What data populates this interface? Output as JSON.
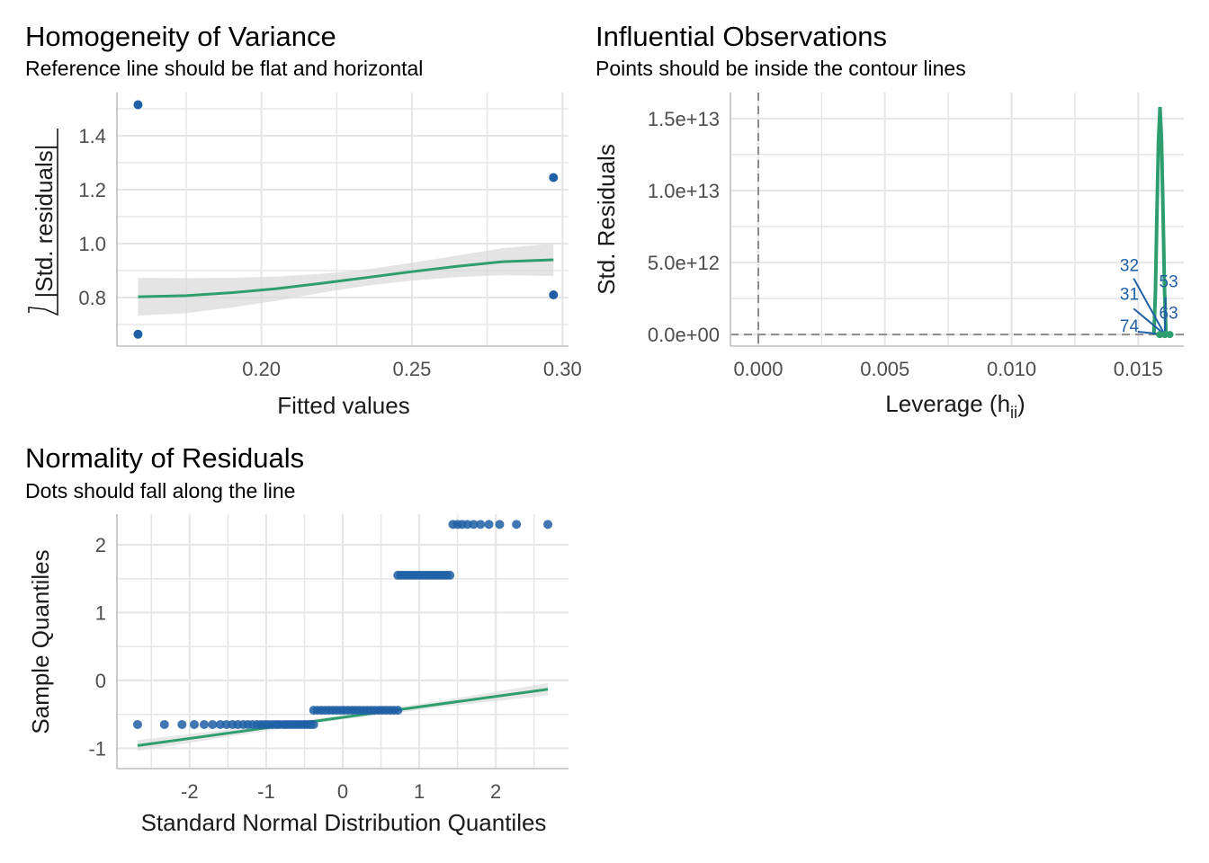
{
  "colors": {
    "points": "#1f5fa6",
    "line": "#2e9e6e",
    "band": "#d9d9d9",
    "grid": "#e5e5e5",
    "ref": "#8c8c8c"
  },
  "chart_data": [
    {
      "id": "variance",
      "type": "scatter",
      "title": "Homogeneity of Variance",
      "subtitle": "Reference line should be flat and horizontal",
      "xlabel": "Fitted values",
      "ylabel_radicand": "|Std. residuals|",
      "xlim": [
        0.152,
        0.302
      ],
      "ylim": [
        0.62,
        1.56
      ],
      "xticks": [
        0.2,
        0.25,
        0.3
      ],
      "xtick_labels": [
        "0.20",
        "0.25",
        "0.30"
      ],
      "yticks": [
        0.8,
        1.0,
        1.2,
        1.4
      ],
      "ytick_labels": [
        "0.8",
        "1.0",
        "1.2",
        "1.4"
      ],
      "points": [
        {
          "x": 0.159,
          "y": 1.515
        },
        {
          "x": 0.159,
          "y": 0.664
        },
        {
          "x": 0.297,
          "y": 1.245
        },
        {
          "x": 0.297,
          "y": 0.81
        }
      ],
      "smooth": [
        {
          "x": 0.159,
          "y": 0.803
        },
        {
          "x": 0.175,
          "y": 0.807
        },
        {
          "x": 0.19,
          "y": 0.818
        },
        {
          "x": 0.205,
          "y": 0.833
        },
        {
          "x": 0.22,
          "y": 0.853
        },
        {
          "x": 0.235,
          "y": 0.874
        },
        {
          "x": 0.25,
          "y": 0.896
        },
        {
          "x": 0.265,
          "y": 0.916
        },
        {
          "x": 0.28,
          "y": 0.933
        },
        {
          "x": 0.297,
          "y": 0.94
        }
      ],
      "band_halfwidth": [
        0.07,
        0.065,
        0.055,
        0.045,
        0.035,
        0.03,
        0.033,
        0.04,
        0.05,
        0.06
      ]
    },
    {
      "id": "influence",
      "type": "line",
      "title": "Influential Observations",
      "subtitle": "Points should be inside the contour lines",
      "xlabel": "Leverage (h",
      "xlabel_sub": "ii",
      "xlabel_close": ")",
      "ylabel": "Std. Residuals",
      "xlim": [
        -0.0011,
        0.0168
      ],
      "ylim": [
        -800000000000.0,
        16800000000000.0
      ],
      "xticks": [
        0,
        0.005,
        0.01,
        0.015
      ],
      "xtick_labels": [
        "0.000",
        "0.005",
        "0.010",
        "0.015"
      ],
      "yticks": [
        0,
        5000000000000.0,
        10000000000000.0,
        15000000000000.0
      ],
      "ytick_labels": [
        "0.0e+00",
        "5.0e+12",
        "1.0e+13",
        "1.5e+13"
      ],
      "ref_x": 0,
      "ref_y": 0,
      "contour": [
        {
          "x": 0.01562,
          "y": 0
        },
        {
          "x": 0.01568,
          "y": 3000000000000.0
        },
        {
          "x": 0.01574,
          "y": 8500000000000.0
        },
        {
          "x": 0.0158,
          "y": 13500000000000.0
        },
        {
          "x": 0.01586,
          "y": 15800000000000.0
        },
        {
          "x": 0.01592,
          "y": 13500000000000.0
        },
        {
          "x": 0.01598,
          "y": 8500000000000.0
        },
        {
          "x": 0.01604,
          "y": 3000000000000.0
        },
        {
          "x": 0.0161,
          "y": 0
        }
      ],
      "labels": [
        {
          "text": "32",
          "x": 0.01465,
          "y": 4400000000000.0,
          "color": "blue"
        },
        {
          "text": "31",
          "x": 0.01465,
          "y": 2400000000000.0,
          "color": "blue"
        },
        {
          "text": "74",
          "x": 0.01465,
          "y": 200000000000.0,
          "color": "blue"
        },
        {
          "text": "53",
          "x": 0.0162,
          "y": 3300000000000.0,
          "color": "blue"
        },
        {
          "text": "63",
          "x": 0.0162,
          "y": 1100000000000.0,
          "color": "blue"
        }
      ],
      "label_segments": [
        {
          "x1": 0.01482,
          "y1": 3900000000000.0,
          "x2": 0.01605,
          "y2": 0
        },
        {
          "x1": 0.01482,
          "y1": 1800000000000.0,
          "x2": 0.01605,
          "y2": 0
        },
        {
          "x1": 0.01498,
          "y1": 200000000000.0,
          "x2": 0.01605,
          "y2": 0
        },
        {
          "x1": 0.01608,
          "y1": 2600000000000.0,
          "x2": 0.01605,
          "y2": 0
        }
      ],
      "points": [
        {
          "x": 0.01605,
          "y": 0
        },
        {
          "x": 0.01585,
          "y": 0
        },
        {
          "x": 0.01625,
          "y": 0
        }
      ]
    },
    {
      "id": "qq",
      "type": "scatter",
      "title": "Normality of Residuals",
      "subtitle": "Dots should fall along the line",
      "xlabel": "Standard Normal Distribution Quantiles",
      "ylabel": "Sample Quantiles",
      "xlim": [
        -2.95,
        2.95
      ],
      "ylim": [
        -1.3,
        2.45
      ],
      "xticks": [
        -2,
        -1,
        0,
        1,
        2
      ],
      "xtick_labels": [
        "-2",
        "-1",
        "0",
        "1",
        "2"
      ],
      "yticks": [
        -1,
        0,
        1,
        2
      ],
      "ytick_labels": [
        "-1",
        "0",
        "1",
        "2"
      ],
      "groups": [
        {
          "y": -0.65,
          "x": [
            -2.68,
            -2.33,
            -2.1,
            -1.94,
            -1.81,
            -1.7,
            -1.6,
            -1.52,
            -1.44,
            -1.37,
            -1.3,
            -1.24,
            -1.18,
            -1.12,
            -1.07,
            -1.02,
            -0.97,
            -0.92,
            -0.87,
            -0.83,
            -0.78,
            -0.74,
            -0.7,
            -0.66,
            -0.62,
            -0.58,
            -0.54,
            -0.5,
            -0.46,
            -0.42,
            -0.38
          ]
        },
        {
          "y": -0.44,
          "x": [
            -0.38,
            -0.33,
            -0.28,
            -0.23,
            -0.18,
            -0.13,
            -0.08,
            -0.03,
            0.02,
            0.07,
            0.12,
            0.17,
            0.22,
            0.27,
            0.32,
            0.37,
            0.42,
            0.47,
            0.52,
            0.57,
            0.62,
            0.67,
            0.72
          ]
        },
        {
          "y": 1.55,
          "x": [
            0.72,
            0.76,
            0.8,
            0.84,
            0.88,
            0.92,
            0.96,
            1.0,
            1.04,
            1.08,
            1.12,
            1.16,
            1.2,
            1.24,
            1.28,
            1.32,
            1.36,
            1.4
          ]
        },
        {
          "y": 2.3,
          "x": [
            1.44,
            1.5,
            1.56,
            1.63,
            1.71,
            1.8,
            1.91,
            2.05,
            2.27,
            2.68
          ]
        }
      ],
      "ref_line": [
        {
          "x": -2.68,
          "y": -0.96
        },
        {
          "x": 2.68,
          "y": -0.13
        }
      ],
      "band_halfwidth": [
        0.08,
        0.05,
        0.03,
        0.05,
        0.09
      ]
    }
  ]
}
